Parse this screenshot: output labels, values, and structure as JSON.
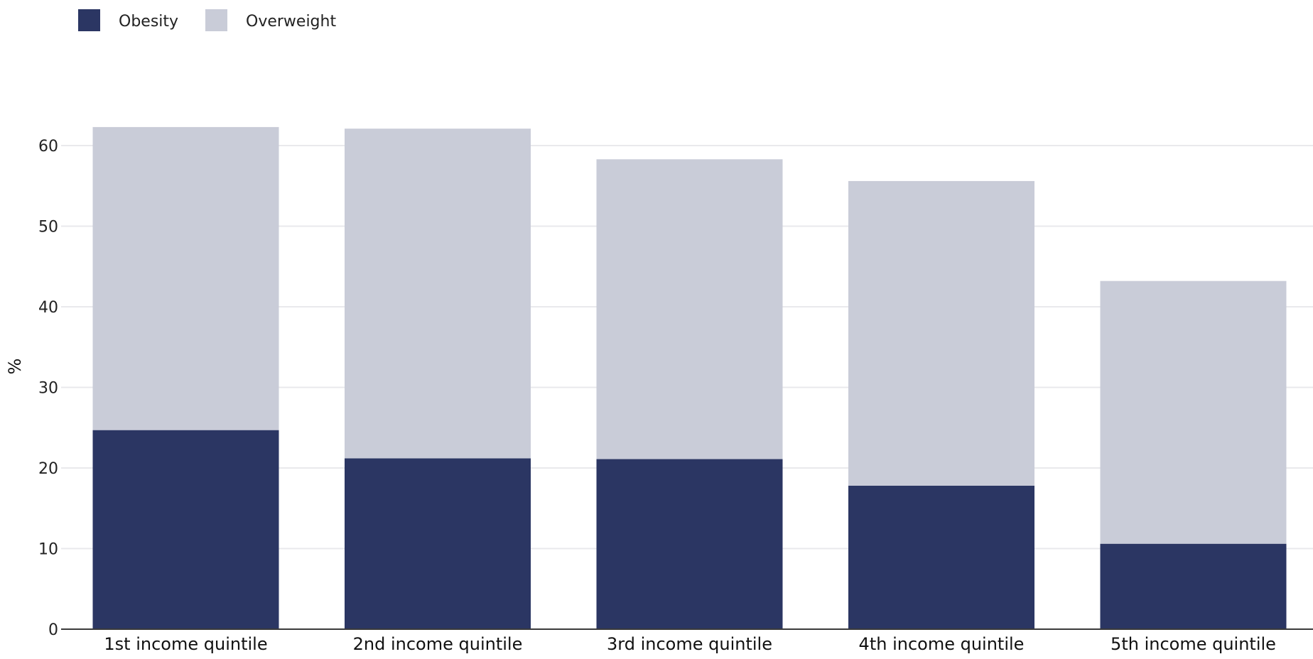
{
  "chart_data": {
    "type": "bar",
    "stacked": true,
    "categories": [
      "1st income quintile",
      "2nd income quintile",
      "3rd income quintile",
      "4th income quintile",
      "5th income quintile"
    ],
    "series": [
      {
        "name": "Obesity",
        "color": "#2b3663",
        "values": [
          24.7,
          21.2,
          21.1,
          17.8,
          10.6
        ]
      },
      {
        "name": "Overweight",
        "color": "#c9ccd8",
        "values": [
          37.6,
          40.9,
          37.2,
          37.8,
          32.6
        ]
      }
    ],
    "ylabel": "%",
    "ylim": [
      0,
      65
    ],
    "yticks": [
      0,
      10,
      20,
      30,
      40,
      50,
      60
    ],
    "grid": true,
    "legend": "top-left"
  }
}
